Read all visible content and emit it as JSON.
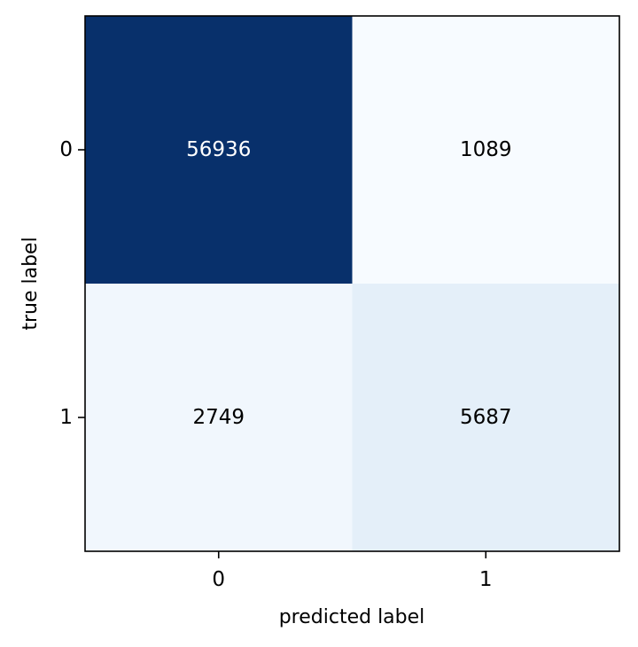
{
  "chart_data": {
    "type": "heatmap",
    "title": "",
    "xlabel": "predicted label",
    "ylabel": "true label",
    "x_categories": [
      "0",
      "1"
    ],
    "y_categories": [
      "0",
      "1"
    ],
    "matrix": [
      [
        56936,
        1089
      ],
      [
        2749,
        5687
      ]
    ],
    "colormap": "Blues",
    "colors": {
      "cells": [
        [
          "#08306b",
          "#f7fbff"
        ],
        [
          "#f1f7fd",
          "#e4eff9"
        ]
      ],
      "text": [
        [
          "#ffffff",
          "#000000"
        ],
        [
          "#000000",
          "#000000"
        ]
      ],
      "frame": "#000000"
    },
    "grid": false,
    "legend": "none"
  }
}
